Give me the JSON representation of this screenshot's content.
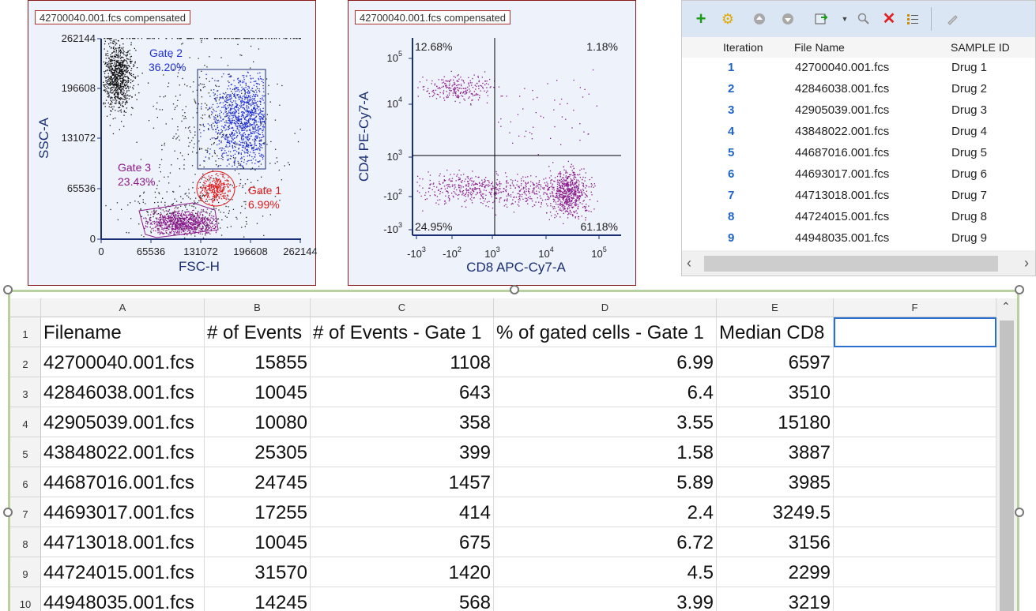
{
  "plot1": {
    "title": "42700040.001.fcs compensated",
    "x_label": "FSC-H",
    "y_label": "SSC-A",
    "x_ticks": [
      "0",
      "65536",
      "131072",
      "196608",
      "262144"
    ],
    "y_ticks": [
      "0",
      "65536",
      "131072",
      "196608",
      "262144"
    ],
    "gates": [
      {
        "name": "Gate 2",
        "percent": "36.20%",
        "color": "#1f2fd6"
      },
      {
        "name": "Gate 3",
        "percent": "23.43%",
        "color": "#8b1a8b"
      },
      {
        "name": "Gate 1",
        "percent": "6.99%",
        "color": "#e01818"
      }
    ]
  },
  "plot2": {
    "title": "42700040.001.fcs compensated",
    "x_label": "CD8 APC-Cy7-A",
    "y_label": "CD4 PE-Cy7-A",
    "quadrants": {
      "top_left": "12.68%",
      "top_right": "1.18%",
      "bottom_left": "24.95%",
      "bottom_right": "61.18%"
    }
  },
  "iterations": {
    "toolbar_icons": [
      "add-icon",
      "gear-icon",
      "move-up-icon",
      "move-down-icon",
      "export-icon",
      "dropdown-arrow-icon",
      "search-icon",
      "delete-icon",
      "list-icon",
      "edit-icon"
    ],
    "columns": [
      "Iteration",
      "File Name",
      "SAMPLE ID"
    ],
    "rows": [
      {
        "iteration": "1",
        "file": "42700040.001.fcs",
        "sample": "Drug 1"
      },
      {
        "iteration": "2",
        "file": "42846038.001.fcs",
        "sample": "Drug 2"
      },
      {
        "iteration": "3",
        "file": "42905039.001.fcs",
        "sample": "Drug 3"
      },
      {
        "iteration": "4",
        "file": "43848022.001.fcs",
        "sample": "Drug 4"
      },
      {
        "iteration": "5",
        "file": "44687016.001.fcs",
        "sample": "Drug 5"
      },
      {
        "iteration": "6",
        "file": "44693017.001.fcs",
        "sample": "Drug 6"
      },
      {
        "iteration": "7",
        "file": "44713018.001.fcs",
        "sample": "Drug 7"
      },
      {
        "iteration": "8",
        "file": "44724015.001.fcs",
        "sample": "Drug 8"
      },
      {
        "iteration": "9",
        "file": "44948035.001.fcs",
        "sample": "Drug 9"
      }
    ]
  },
  "sheet": {
    "columns": [
      "A",
      "B",
      "C",
      "D",
      "E",
      "F"
    ],
    "row_numbers": [
      "1",
      "2",
      "3",
      "4",
      "5",
      "6",
      "7",
      "8",
      "9",
      "10"
    ],
    "headers": [
      "Filename",
      "# of Events",
      "# of Events - Gate 1",
      "% of gated cells - Gate 1",
      "Median CD8"
    ],
    "rows": [
      [
        "42700040.001.fcs",
        "15855",
        "1108",
        "6.99",
        "6597"
      ],
      [
        "42846038.001.fcs",
        "10045",
        "643",
        "6.4",
        "3510"
      ],
      [
        "42905039.001.fcs",
        "10080",
        "358",
        "3.55",
        "15180"
      ],
      [
        "43848022.001.fcs",
        "25305",
        "399",
        "1.58",
        "3887"
      ],
      [
        "44687016.001.fcs",
        "24745",
        "1457",
        "5.89",
        "3985"
      ],
      [
        "44693017.001.fcs",
        "17255",
        "414",
        "2.4",
        "3249.5"
      ],
      [
        "44713018.001.fcs",
        "10045",
        "675",
        "6.72",
        "3156"
      ],
      [
        "44724015.001.fcs",
        "31570",
        "1420",
        "4.5",
        "2299"
      ],
      [
        "44948035.001.fcs",
        "14245",
        "568",
        "3.99",
        "3219"
      ]
    ]
  }
}
